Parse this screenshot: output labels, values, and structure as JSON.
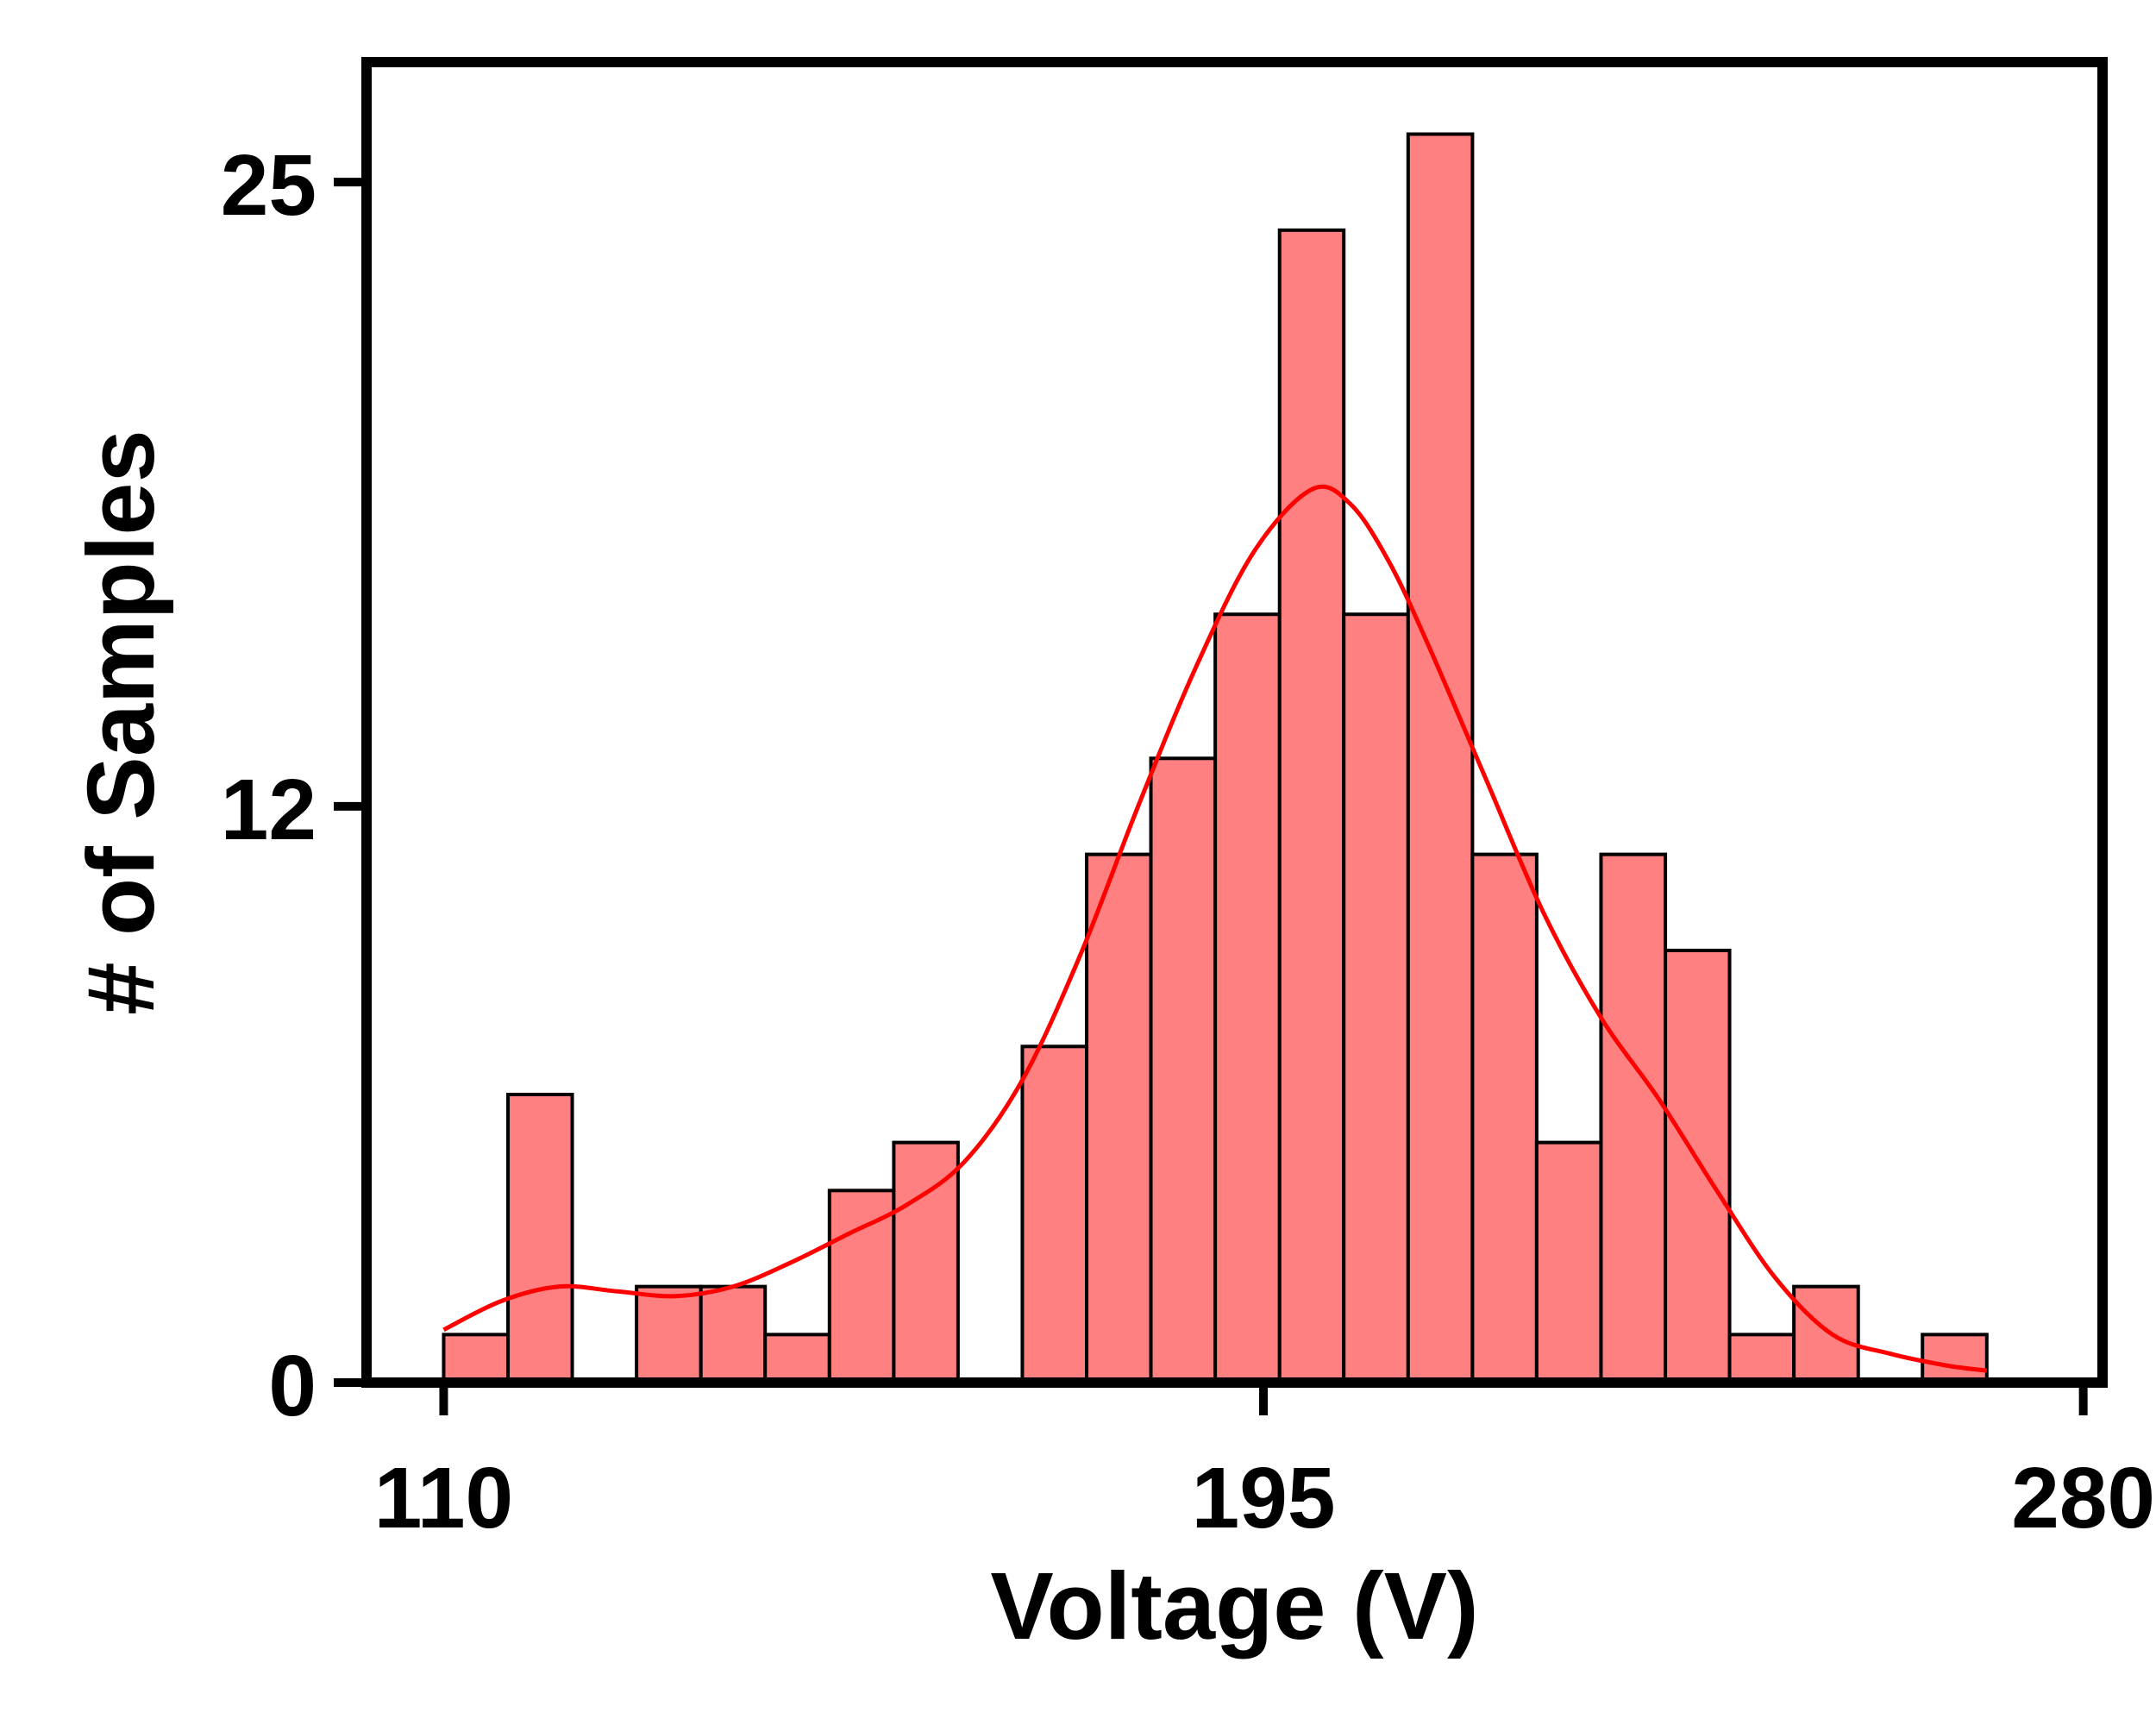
{
  "chart_data": {
    "type": "bar",
    "subtype": "histogram",
    "xlabel": "Voltage (V)",
    "ylabel": "# of Samples",
    "xlim": [
      102,
      282
    ],
    "ylim": [
      0,
      27.5
    ],
    "xticks": [
      110,
      195,
      280
    ],
    "yticks": [
      0,
      12,
      25
    ],
    "bin_width": 6.67,
    "bins": [
      {
        "start": 110.0,
        "end": 116.67,
        "count": 1
      },
      {
        "start": 116.67,
        "end": 123.33,
        "count": 6
      },
      {
        "start": 123.33,
        "end": 130.0,
        "count": 0
      },
      {
        "start": 130.0,
        "end": 136.67,
        "count": 2
      },
      {
        "start": 136.67,
        "end": 143.33,
        "count": 2
      },
      {
        "start": 143.33,
        "end": 150.0,
        "count": 1
      },
      {
        "start": 150.0,
        "end": 156.67,
        "count": 4
      },
      {
        "start": 156.67,
        "end": 163.33,
        "count": 5
      },
      {
        "start": 163.33,
        "end": 170.0,
        "count": 0
      },
      {
        "start": 170.0,
        "end": 176.67,
        "count": 7
      },
      {
        "start": 176.67,
        "end": 183.33,
        "count": 11
      },
      {
        "start": 183.33,
        "end": 190.0,
        "count": 13
      },
      {
        "start": 190.0,
        "end": 196.67,
        "count": 16
      },
      {
        "start": 196.67,
        "end": 203.33,
        "count": 24
      },
      {
        "start": 203.33,
        "end": 210.0,
        "count": 16
      },
      {
        "start": 210.0,
        "end": 216.67,
        "count": 26
      },
      {
        "start": 216.67,
        "end": 223.33,
        "count": 11
      },
      {
        "start": 223.33,
        "end": 230.0,
        "count": 5
      },
      {
        "start": 230.0,
        "end": 236.67,
        "count": 11
      },
      {
        "start": 236.67,
        "end": 243.33,
        "count": 9
      },
      {
        "start": 243.33,
        "end": 250.0,
        "count": 1
      },
      {
        "start": 250.0,
        "end": 256.67,
        "count": 2
      },
      {
        "start": 256.67,
        "end": 263.33,
        "count": 0
      },
      {
        "start": 263.33,
        "end": 270.0,
        "count": 1
      }
    ],
    "kde": {
      "x": [
        110,
        116,
        122,
        128,
        134,
        140,
        146,
        152,
        158,
        164,
        170,
        176,
        182,
        188,
        194,
        200,
        204,
        208,
        212,
        218,
        224,
        230,
        236,
        242,
        248,
        254,
        260,
        266,
        270
      ],
      "y": [
        1.1,
        1.7,
        2.0,
        1.9,
        1.8,
        2.0,
        2.5,
        3.1,
        3.7,
        4.6,
        6.3,
        8.9,
        12.0,
        14.9,
        17.3,
        18.6,
        18.3,
        17.1,
        15.4,
        12.6,
        9.8,
        7.6,
        5.9,
        4.0,
        2.2,
        1.0,
        0.6,
        0.35,
        0.25
      ]
    },
    "bar_color": "#ff8080",
    "bar_edge_color": "#000000",
    "kde_color": "#ff0000",
    "grid": false,
    "legend": false
  }
}
